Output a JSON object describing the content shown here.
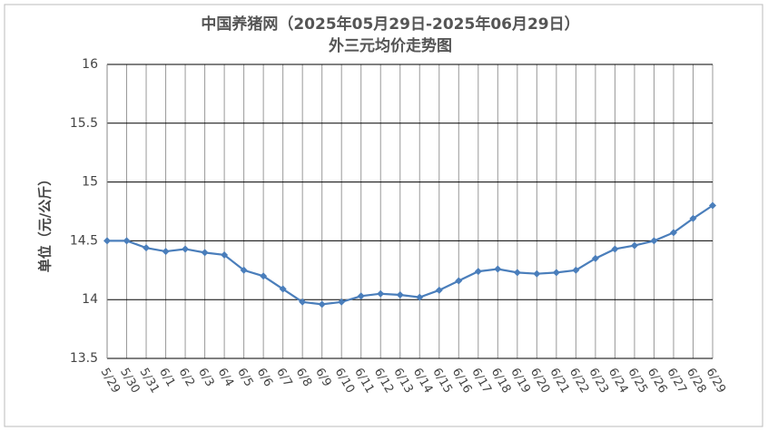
{
  "chart_data": {
    "type": "line",
    "title": "中国养猪网（2025年05月29日-2025年06月29日）",
    "subtitle": "外三元均价走势图",
    "y_label": "单位（元/公斤）",
    "categories": [
      "5/29",
      "5/30",
      "5/31",
      "6/1",
      "6/2",
      "6/3",
      "6/4",
      "6/5",
      "6/6",
      "6/7",
      "6/8",
      "6/9",
      "6/10",
      "6/11",
      "6/12",
      "6/13",
      "6/14",
      "6/15",
      "6/16",
      "6/17",
      "6/18",
      "6/19",
      "6/20",
      "6/21",
      "6/22",
      "6/23",
      "6/24",
      "6/25",
      "6/26",
      "6/27",
      "6/28",
      "6/29"
    ],
    "values": [
      14.5,
      14.5,
      14.44,
      14.41,
      14.43,
      14.4,
      14.38,
      14.25,
      14.2,
      14.09,
      13.98,
      13.96,
      13.98,
      14.03,
      14.05,
      14.04,
      14.02,
      14.08,
      14.16,
      14.24,
      14.26,
      14.23,
      14.22,
      14.23,
      14.25,
      14.35,
      14.43,
      14.46,
      14.5,
      14.57,
      14.69,
      14.8
    ],
    "color": "#4a7ebb",
    "ylim": [
      13.5,
      16
    ],
    "yticks": [
      13.5,
      14,
      14.5,
      15,
      15.5,
      16
    ],
    "grid": true
  }
}
